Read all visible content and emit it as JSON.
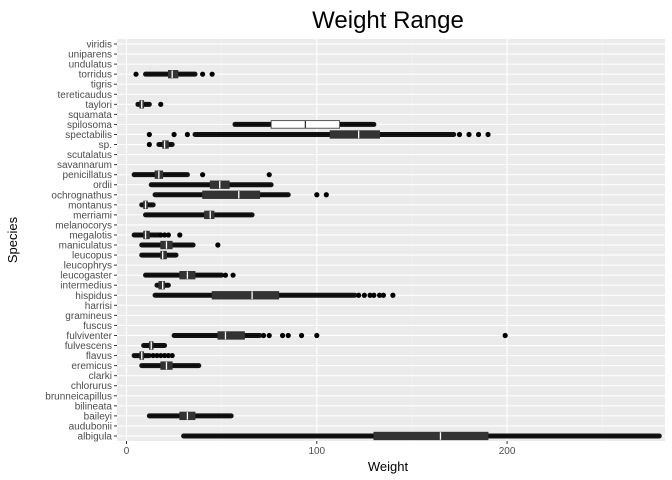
{
  "chart_data": {
    "type": "boxplot",
    "title": "Weight Range",
    "xlabel": "Weight",
    "ylabel": "Species",
    "xlim": [
      -5,
      283
    ],
    "xticks": [
      0,
      100,
      200
    ],
    "grid": true,
    "categories": [
      "albigula",
      "audubonii",
      "baileyi",
      "bilineata",
      "brunneicapillus",
      "chlorurus",
      "clarki",
      "eremicus",
      "flavus",
      "fulvescens",
      "fulviventer",
      "fuscus",
      "gramineus",
      "harrisi",
      "hispidus",
      "intermedius",
      "leucogaster",
      "leucophrys",
      "leucopus",
      "maniculatus",
      "megalotis",
      "melanocorys",
      "merriami",
      "montanus",
      "ochrognathus",
      "ordii",
      "penicillatus",
      "savannarum",
      "scutalatus",
      "sp.",
      "spectabilis",
      "spilosoma",
      "squamata",
      "taylori",
      "tereticaudus",
      "tigris",
      "torridus",
      "undulatus",
      "uniparens",
      "viridis"
    ],
    "boxes": [
      {
        "species": "albigula",
        "q1": 130,
        "median": 165,
        "q3": 190,
        "whisker_low": 30,
        "whisker_high": 280,
        "outliers": []
      },
      {
        "species": "baileyi",
        "q1": 28,
        "median": 32,
        "q3": 36,
        "whisker_low": 12,
        "whisker_high": 55,
        "outliers": []
      },
      {
        "species": "eremicus",
        "q1": 18,
        "median": 21,
        "q3": 24,
        "whisker_low": 8,
        "whisker_high": 38,
        "outliers": []
      },
      {
        "species": "flavus",
        "q1": 7,
        "median": 8,
        "q3": 9,
        "whisker_low": 4,
        "whisker_high": 12,
        "outliers": [
          14,
          16,
          18,
          20,
          22,
          24
        ]
      },
      {
        "species": "fulvescens",
        "q1": 12,
        "median": 13,
        "q3": 14,
        "whisker_low": 9,
        "whisker_high": 20,
        "outliers": []
      },
      {
        "species": "fulviventer",
        "q1": 48,
        "median": 52,
        "q3": 62,
        "whisker_low": 25,
        "whisker_high": 70,
        "outliers": [
          72,
          75,
          82,
          85,
          92,
          100,
          199
        ]
      },
      {
        "species": "hispidus",
        "q1": 45,
        "median": 66,
        "q3": 80,
        "whisker_low": 15,
        "whisker_high": 120,
        "outliers": [
          122,
          125,
          128,
          130,
          133,
          135,
          140
        ]
      },
      {
        "species": "intermedius",
        "q1": 17,
        "median": 19,
        "q3": 20,
        "whisker_low": 16,
        "whisker_high": 22,
        "outliers": []
      },
      {
        "species": "leucogaster",
        "q1": 28,
        "median": 32,
        "q3": 36,
        "whisker_low": 10,
        "whisker_high": 50,
        "outliers": [
          52,
          56
        ]
      },
      {
        "species": "leucopus",
        "q1": 18,
        "median": 19,
        "q3": 21,
        "whisker_low": 8,
        "whisker_high": 26,
        "outliers": []
      },
      {
        "species": "maniculatus",
        "q1": 18,
        "median": 21,
        "q3": 24,
        "whisker_low": 8,
        "whisker_high": 35,
        "outliers": [
          48
        ]
      },
      {
        "species": "megalotis",
        "q1": 9,
        "median": 10,
        "q3": 12,
        "whisker_low": 4,
        "whisker_high": 17,
        "outliers": [
          18,
          20,
          22,
          28
        ]
      },
      {
        "species": "merriami",
        "q1": 41,
        "median": 44,
        "q3": 46,
        "whisker_low": 10,
        "whisker_high": 66,
        "outliers": []
      },
      {
        "species": "montanus",
        "q1": 9,
        "median": 10,
        "q3": 11,
        "whisker_low": 8,
        "whisker_high": 14,
        "outliers": []
      },
      {
        "species": "ochrognathus",
        "q1": 40,
        "median": 59,
        "q3": 70,
        "whisker_low": 15,
        "whisker_high": 85,
        "outliers": [
          100,
          105
        ]
      },
      {
        "species": "ordii",
        "q1": 44,
        "median": 49,
        "q3": 54,
        "whisker_low": 13,
        "whisker_high": 76,
        "outliers": []
      },
      {
        "species": "penicillatus",
        "q1": 15,
        "median": 17,
        "q3": 19,
        "whisker_low": 4,
        "whisker_high": 32,
        "outliers": [
          40,
          75
        ]
      },
      {
        "species": "sp.",
        "q1": 19,
        "median": 20,
        "q3": 22,
        "whisker_low": 17,
        "whisker_high": 24,
        "outliers": [
          12
        ]
      },
      {
        "species": "spectabilis",
        "q1": 107,
        "median": 122,
        "q3": 133,
        "whisker_low": 36,
        "whisker_high": 172,
        "outliers": [
          12,
          25,
          32,
          175,
          180,
          185,
          190
        ]
      },
      {
        "species": "spilosoma",
        "q1": 76,
        "median": 94,
        "q3": 112,
        "whisker_low": 57,
        "whisker_high": 130,
        "outliers": []
      },
      {
        "species": "taylori",
        "q1": 7,
        "median": 8,
        "q3": 9,
        "whisker_low": 6,
        "whisker_high": 12,
        "outliers": [
          18
        ]
      },
      {
        "species": "torridus",
        "q1": 22,
        "median": 24,
        "q3": 27,
        "whisker_low": 10,
        "whisker_high": 36,
        "outliers": [
          5,
          40,
          45
        ]
      }
    ]
  }
}
